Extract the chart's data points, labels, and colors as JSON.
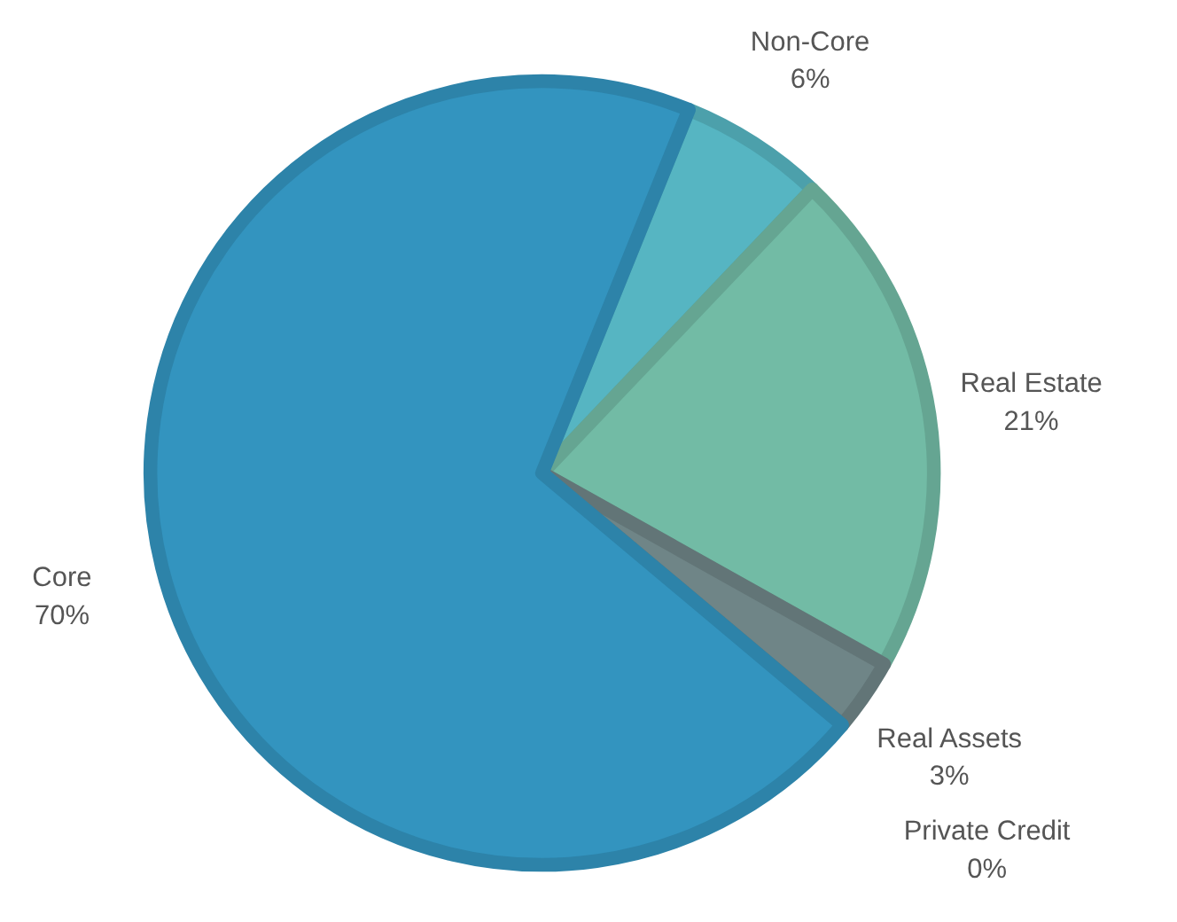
{
  "chart_data": {
    "type": "pie",
    "categories": [
      "Non-Core",
      "Real Estate",
      "Real Assets",
      "Private Credit",
      "Core"
    ],
    "values": [
      6,
      21,
      3,
      0,
      70
    ],
    "colors": [
      "#56b5c2",
      "#72bba5",
      "#6f8587",
      "#e8eef0",
      "#3394bf"
    ],
    "value_labels": [
      "6%",
      "21%",
      "3%",
      "0%",
      "70%"
    ],
    "legend": false
  }
}
